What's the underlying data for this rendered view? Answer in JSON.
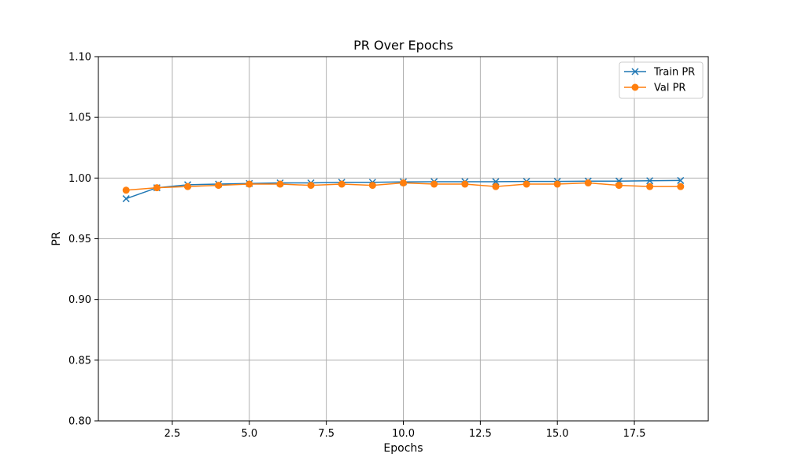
{
  "chart_data": {
    "type": "line",
    "title": "PR Over Epochs",
    "xlabel": "Epochs",
    "ylabel": "PR",
    "xlim": [
      0.1,
      19.9
    ],
    "ylim": [
      0.8,
      1.1
    ],
    "xticks": [
      2.5,
      5.0,
      7.5,
      10.0,
      12.5,
      15.0,
      17.5
    ],
    "xtick_labels": [
      "2.5",
      "5.0",
      "7.5",
      "10.0",
      "12.5",
      "15.0",
      "17.5"
    ],
    "yticks": [
      0.8,
      0.85,
      0.9,
      0.95,
      1.0,
      1.05,
      1.1
    ],
    "ytick_labels": [
      "0.80",
      "0.85",
      "0.90",
      "0.95",
      "1.00",
      "1.05",
      "1.10"
    ],
    "grid": true,
    "legend_position": "top-right",
    "x": [
      1,
      2,
      3,
      4,
      5,
      6,
      7,
      8,
      9,
      10,
      11,
      12,
      13,
      14,
      15,
      16,
      17,
      18,
      19
    ],
    "series": [
      {
        "name": "Train PR",
        "color": "#1f77b4",
        "marker": "x",
        "values": [
          0.983,
          0.992,
          0.9945,
          0.995,
          0.9955,
          0.996,
          0.996,
          0.9965,
          0.9965,
          0.9968,
          0.997,
          0.997,
          0.997,
          0.9972,
          0.9972,
          0.9975,
          0.9975,
          0.9978,
          0.998
        ]
      },
      {
        "name": "Val PR",
        "color": "#ff7f0e",
        "marker": "o",
        "values": [
          0.99,
          0.992,
          0.993,
          0.994,
          0.995,
          0.995,
          0.994,
          0.995,
          0.994,
          0.996,
          0.995,
          0.995,
          0.993,
          0.995,
          0.995,
          0.996,
          0.994,
          0.993,
          0.993
        ]
      }
    ]
  }
}
